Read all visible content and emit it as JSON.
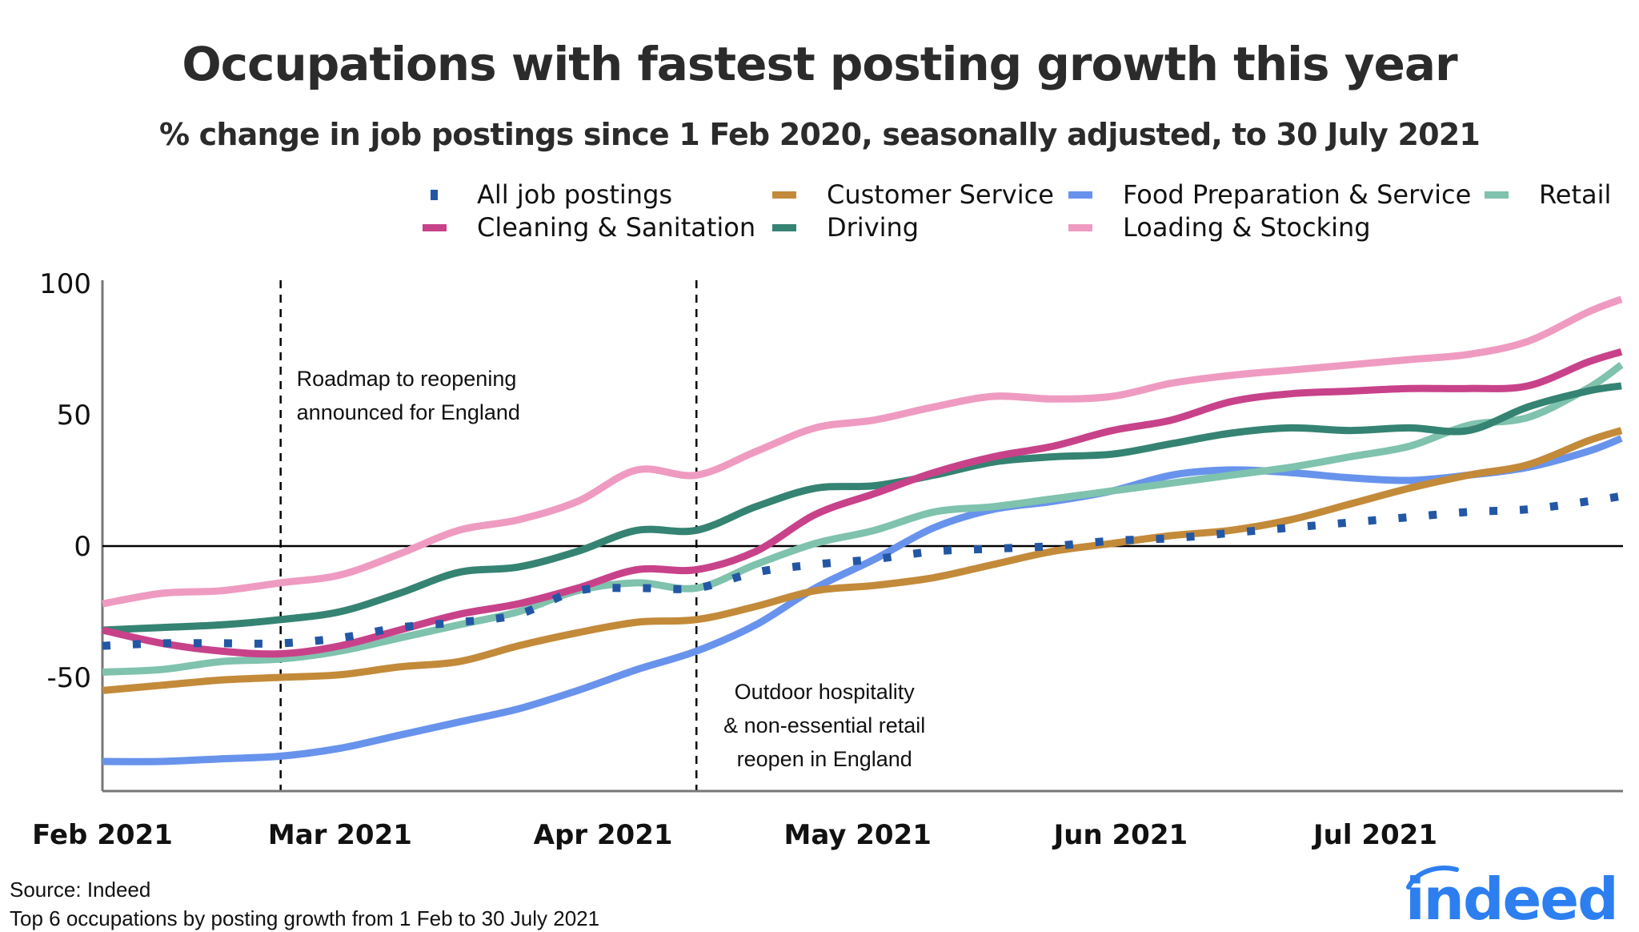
{
  "chart_data": {
    "type": "line",
    "title": "Occupations with fastest posting growth this year",
    "subtitle": "% change in job postings since 1 Feb 2020, seasonally adjusted, to 30 July 2021",
    "xlabel": "",
    "ylabel": "",
    "x_unit": "days since 1 Feb 2021",
    "xlim": [
      0,
      179
    ],
    "ylim": [
      -90,
      100
    ],
    "yticks": [
      100,
      50,
      0,
      -50
    ],
    "ytick_labels": [
      "100",
      "50",
      "0",
      "-50"
    ],
    "xticks": [
      {
        "day": 0,
        "label": "Feb 2021"
      },
      {
        "day": 28,
        "label": "Mar 2021"
      },
      {
        "day": 59,
        "label": "Apr 2021"
      },
      {
        "day": 89,
        "label": "May 2021"
      },
      {
        "day": 120,
        "label": "Jun 2021"
      },
      {
        "day": 150,
        "label": "Jul 2021"
      }
    ],
    "grid": false,
    "zero_line": true,
    "legend_position": "top-right",
    "x": [
      0,
      7,
      14,
      21,
      28,
      35,
      42,
      49,
      56,
      63,
      70,
      77,
      84,
      91,
      98,
      105,
      112,
      119,
      126,
      133,
      140,
      147,
      154,
      161,
      168,
      175,
      179
    ],
    "series": [
      {
        "name": "All job postings",
        "color": "#2357a5",
        "style": "dotted",
        "values": [
          -38,
          -37,
          -37,
          -37,
          -35,
          -31,
          -29,
          -26,
          -17,
          -16,
          -16,
          -10,
          -7,
          -5,
          -2,
          -1,
          0,
          2,
          3,
          5,
          7,
          9,
          11,
          13,
          14,
          17,
          19
        ]
      },
      {
        "name": "Cleaning & Sanitation",
        "color": "#c8428a",
        "style": "solid",
        "values": [
          -32,
          -37,
          -40,
          -41,
          -38,
          -32,
          -26,
          -22,
          -16,
          -9,
          -9,
          -2,
          12,
          20,
          28,
          34,
          38,
          44,
          48,
          55,
          58,
          59,
          60,
          60,
          61,
          70,
          74
        ]
      },
      {
        "name": "Customer Service",
        "color": "#c38a3a",
        "style": "solid",
        "values": [
          -55,
          -53,
          -51,
          -50,
          -49,
          -46,
          -44,
          -38,
          -33,
          -29,
          -28,
          -23,
          -17,
          -15,
          -12,
          -7,
          -2,
          1,
          4,
          6,
          10,
          16,
          22,
          27,
          31,
          40,
          44
        ]
      },
      {
        "name": "Driving",
        "color": "#358372",
        "style": "solid",
        "values": [
          -32,
          -31,
          -30,
          -28,
          -25,
          -18,
          -10,
          -8,
          -2,
          6,
          6,
          15,
          22,
          23,
          27,
          32,
          34,
          35,
          39,
          43,
          45,
          44,
          45,
          44,
          53,
          59,
          61
        ]
      },
      {
        "name": "Food Preparation & Service",
        "color": "#6893ec",
        "style": "solid",
        "values": [
          -82,
          -82,
          -81,
          -80,
          -77,
          -72,
          -67,
          -62,
          -55,
          -47,
          -40,
          -30,
          -16,
          -5,
          7,
          14,
          17,
          21,
          27,
          29,
          28,
          26,
          25,
          27,
          30,
          36,
          41
        ]
      },
      {
        "name": "Loading & Stocking",
        "color": "#ef9bc1",
        "style": "solid",
        "values": [
          -22,
          -18,
          -17,
          -14,
          -11,
          -3,
          6,
          10,
          17,
          29,
          27,
          36,
          45,
          48,
          53,
          57,
          56,
          57,
          62,
          65,
          67,
          69,
          71,
          73,
          78,
          89,
          94
        ]
      },
      {
        "name": "Retail",
        "color": "#7fc2ad",
        "style": "solid",
        "values": [
          -48,
          -47,
          -44,
          -43,
          -40,
          -35,
          -30,
          -25,
          -17,
          -14,
          -16,
          -7,
          1,
          6,
          13,
          15,
          18,
          21,
          24,
          27,
          30,
          34,
          38,
          46,
          49,
          60,
          69
        ]
      }
    ],
    "annotations": [
      {
        "day": 21,
        "lines": [
          "Roadmap to reopening",
          "announced for England"
        ]
      },
      {
        "day": 70,
        "lines": [
          "Outdoor hospitality",
          "& non-essential retail",
          "reopen in England"
        ]
      }
    ]
  },
  "legend": [
    {
      "label": "All job postings",
      "color": "#2357a5",
      "style": "dotted"
    },
    {
      "label": "Customer Service",
      "color": "#c38a3a",
      "style": "solid"
    },
    {
      "label": "Food Preparation & Service",
      "color": "#6893ec",
      "style": "solid"
    },
    {
      "label": "Retail",
      "color": "#7fc2ad",
      "style": "solid"
    },
    {
      "label": "Cleaning & Sanitation",
      "color": "#c8428a",
      "style": "solid"
    },
    {
      "label": "Driving",
      "color": "#358372",
      "style": "solid"
    },
    {
      "label": "Loading & Stocking",
      "color": "#ef9bc1",
      "style": "solid"
    }
  ],
  "footer": {
    "source": "Source: Indeed",
    "note": "Top 6 occupations by posting growth from 1 Feb to 30 July 2021"
  },
  "brand": {
    "name": "indeed",
    "color": "#2d7ff0",
    "icon": "indeed-logo-icon"
  }
}
